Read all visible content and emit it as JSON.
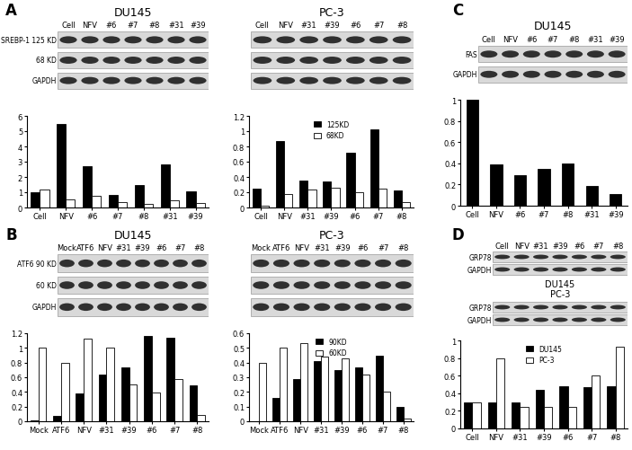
{
  "chart_data": [
    {
      "type": "bar",
      "panel": "A",
      "title": "DU145",
      "blots": [
        {
          "lanes": [
            "Cell",
            "NFV",
            "#6",
            "#7",
            "#8",
            "#31",
            "#39"
          ],
          "rows": [
            "SREBP-1 125 KD",
            "68 KD",
            "GAPDH"
          ]
        }
      ],
      "categories": [
        "Cell",
        "NFV",
        "#6",
        "#7",
        "#8",
        "#31",
        "#39"
      ],
      "series": [
        {
          "name": "125KD",
          "color": "#000000",
          "values": [
            1.0,
            5.5,
            2.7,
            0.85,
            1.45,
            2.8,
            1.05
          ]
        },
        {
          "name": "68KD",
          "color": "#ffffff",
          "values": [
            1.15,
            0.55,
            0.75,
            0.35,
            0.25,
            0.45,
            0.3
          ]
        }
      ],
      "ylim": [
        0,
        6
      ],
      "yticks": [
        0,
        1,
        2,
        3,
        4,
        5,
        6
      ]
    },
    {
      "type": "bar",
      "title": "PC-3",
      "blots": [
        {
          "lanes": [
            "Cell",
            "NFV",
            "#31",
            "#39",
            "#6",
            "#7",
            "#8"
          ],
          "rows": [
            null,
            null,
            null
          ]
        }
      ],
      "categories": [
        "Cell",
        "NFV",
        "#31",
        "#39",
        "#6",
        "#7",
        "#8"
      ],
      "series": [
        {
          "name": "125KD",
          "color": "#000000",
          "values": [
            0.25,
            0.87,
            0.35,
            0.34,
            0.72,
            1.02,
            0.22
          ]
        },
        {
          "name": "68KD",
          "color": "#ffffff",
          "values": [
            0.02,
            0.18,
            0.24,
            0.26,
            0.2,
            0.25,
            0.07
          ]
        }
      ],
      "ylim": [
        0,
        1.2
      ],
      "yticks": [
        0,
        0.2,
        0.4,
        0.6,
        0.8,
        1,
        1.2
      ],
      "legend": "upper center"
    },
    {
      "type": "bar",
      "panel": "B",
      "title": "DU145",
      "blots": [
        {
          "lanes": [
            "Mock",
            "ATF6",
            "NFV",
            "#31",
            "#39",
            "#6",
            "#7",
            "#8"
          ],
          "rows": [
            "ATF6 90 KD",
            "60 KD",
            "GAPDH"
          ]
        }
      ],
      "categories": [
        "Mock",
        "ATF6",
        "NFV",
        "#31",
        "#39",
        "#6",
        "#7",
        "#8"
      ],
      "series": [
        {
          "name": "90KD",
          "color": "#000000",
          "values": [
            0.01,
            0.07,
            0.38,
            0.64,
            0.74,
            1.16,
            1.14,
            0.49
          ]
        },
        {
          "name": "60KD",
          "color": "#ffffff",
          "values": [
            1.0,
            0.79,
            1.13,
            1.0,
            0.5,
            0.39,
            0.57,
            0.08
          ]
        }
      ],
      "ylim": [
        0,
        1.2
      ],
      "yticks": [
        0,
        0.2,
        0.4,
        0.6,
        0.8,
        1,
        1.2
      ]
    },
    {
      "type": "bar",
      "title": "PC-3",
      "blots": [
        {
          "lanes": [
            "Mock",
            "ATF6",
            "NFV",
            "#31",
            "#39",
            "#6",
            "#7",
            "#8"
          ],
          "rows": [
            null,
            null,
            null
          ]
        }
      ],
      "categories": [
        "Mock",
        "ATF6",
        "NFV",
        "#31",
        "#39",
        "#6",
        "#7",
        "#8"
      ],
      "series": [
        {
          "name": "90KD",
          "color": "#000000",
          "values": [
            0.0,
            0.16,
            0.29,
            0.41,
            0.35,
            0.37,
            0.45,
            0.1
          ]
        },
        {
          "name": "60KD",
          "color": "#ffffff",
          "values": [
            0.4,
            0.5,
            0.53,
            0.44,
            0.43,
            0.32,
            0.2,
            0.02
          ]
        }
      ],
      "ylim": [
        0,
        0.6
      ],
      "yticks": [
        0,
        0.1,
        0.2,
        0.3,
        0.4,
        0.5,
        0.6
      ],
      "legend": "upper center"
    },
    {
      "type": "bar",
      "panel": "C",
      "title": "DU145",
      "blots": [
        {
          "lanes": [
            "Cell",
            "NFV",
            "#6",
            "#7",
            "#8",
            "#31",
            "#39"
          ],
          "rows": [
            "FAS",
            "GAPDH"
          ]
        }
      ],
      "categories": [
        "Cell",
        "NFV",
        "#6",
        "#7",
        "#8",
        "#31",
        "#39"
      ],
      "series": [
        {
          "color": "#000000",
          "values": [
            1.0,
            0.39,
            0.29,
            0.35,
            0.4,
            0.19,
            0.11
          ]
        }
      ],
      "ylim": [
        0,
        1
      ],
      "yticks": [
        0,
        0.2,
        0.4,
        0.6,
        0.8,
        1
      ]
    },
    {
      "type": "bar",
      "panel": "D",
      "blots": [
        {
          "name": "DU145",
          "lanes": [
            "Cell",
            "NFV",
            "#31",
            "#39",
            "#6",
            "#7",
            "#8"
          ],
          "rows": [
            "GRP78",
            "GAPDH"
          ]
        },
        {
          "name": "PC-3",
          "rows": [
            "GRP78",
            "GAPDH"
          ]
        }
      ],
      "categories": [
        "Cell",
        "NFV",
        "#31",
        "#39",
        "#6",
        "#7",
        "#8"
      ],
      "series": [
        {
          "name": "DU145",
          "color": "#000000",
          "values": [
            0.3,
            0.3,
            0.3,
            0.44,
            0.48,
            0.47,
            0.48
          ]
        },
        {
          "name": "PC-3",
          "color": "#ffffff",
          "values": [
            0.3,
            0.8,
            0.25,
            0.25,
            0.25,
            0.6,
            0.93
          ]
        }
      ],
      "ylim": [
        0,
        1
      ],
      "yticks": [
        0,
        0.2,
        0.4,
        0.6,
        0.8,
        1
      ],
      "legend": "upper center"
    }
  ]
}
